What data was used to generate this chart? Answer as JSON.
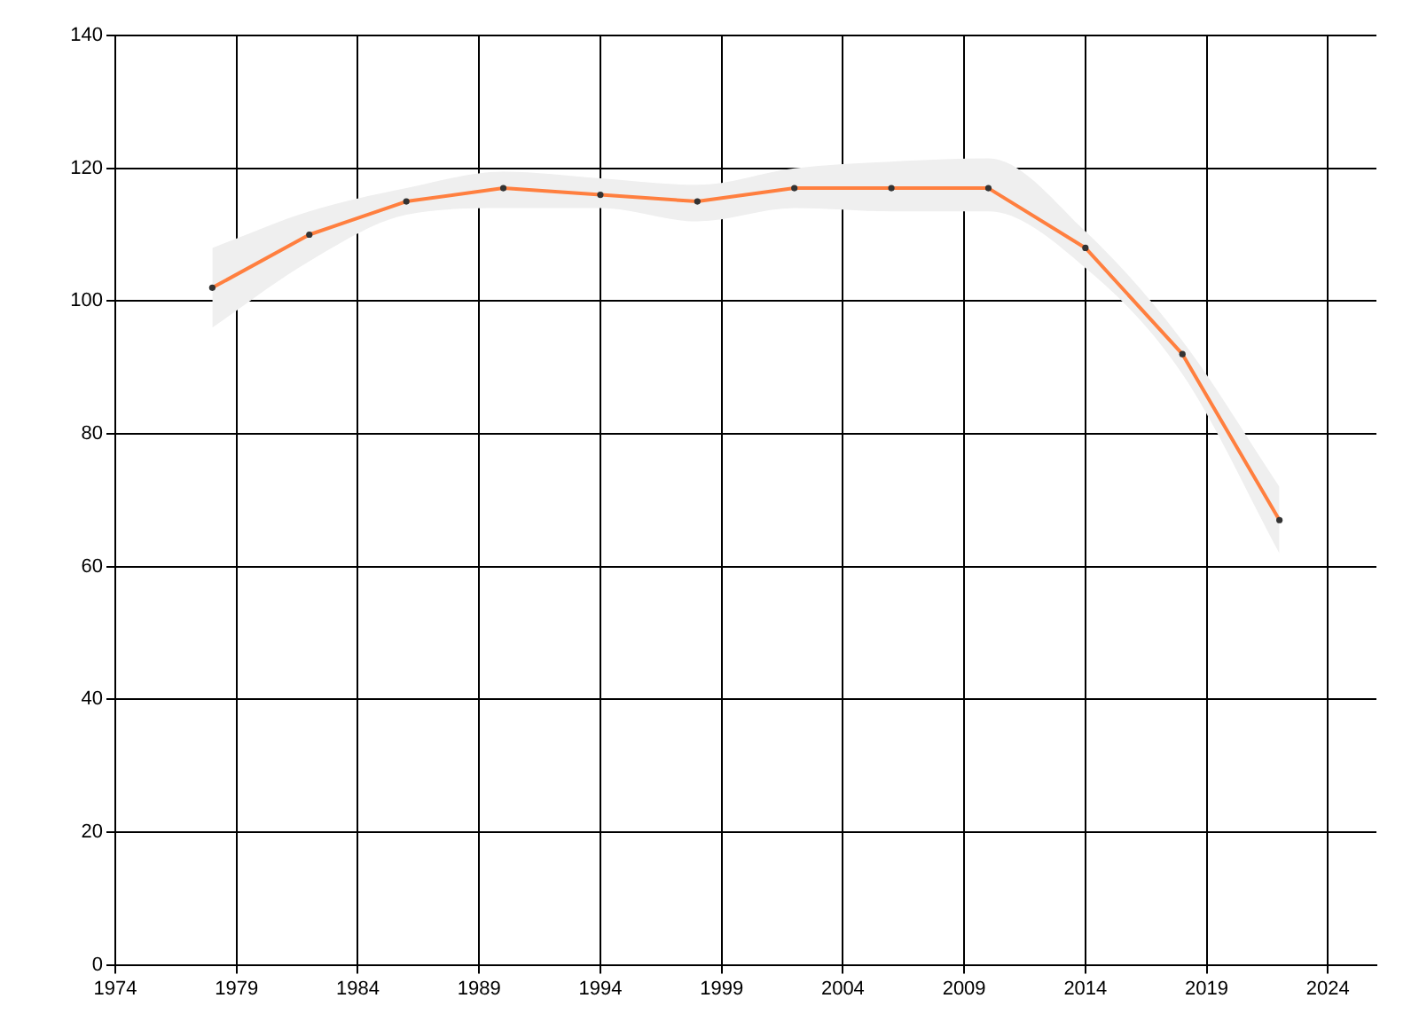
{
  "chart_data": {
    "type": "line",
    "x": [
      1978,
      1982,
      1986,
      1990,
      1994,
      1998,
      2002,
      2006,
      2010,
      2014,
      2018,
      2022
    ],
    "series": [
      {
        "color": "#ff7f3f",
        "values": [
          102,
          110,
          115,
          117,
          116,
          115,
          117,
          117,
          117,
          108,
          92,
          67
        ],
        "lower": [
          96,
          106,
          113,
          114,
          114,
          112,
          114,
          113.5,
          113.5,
          105,
          89,
          62
        ],
        "upper": [
          108,
          113.5,
          117,
          119.5,
          118.5,
          117.5,
          120,
          121,
          121.5,
          110.5,
          94,
          72
        ]
      }
    ],
    "xlim": [
      1974,
      2026
    ],
    "xticks": [
      1974,
      1979,
      1984,
      1989,
      1994,
      1999,
      2004,
      2009,
      2014,
      2019,
      2024
    ],
    "ylim": [
      0,
      140
    ],
    "yticks": [
      0,
      20,
      40,
      60,
      80,
      100,
      120,
      140
    ],
    "grid": true,
    "legend": false,
    "marker": "circle",
    "line_style": "solid"
  }
}
